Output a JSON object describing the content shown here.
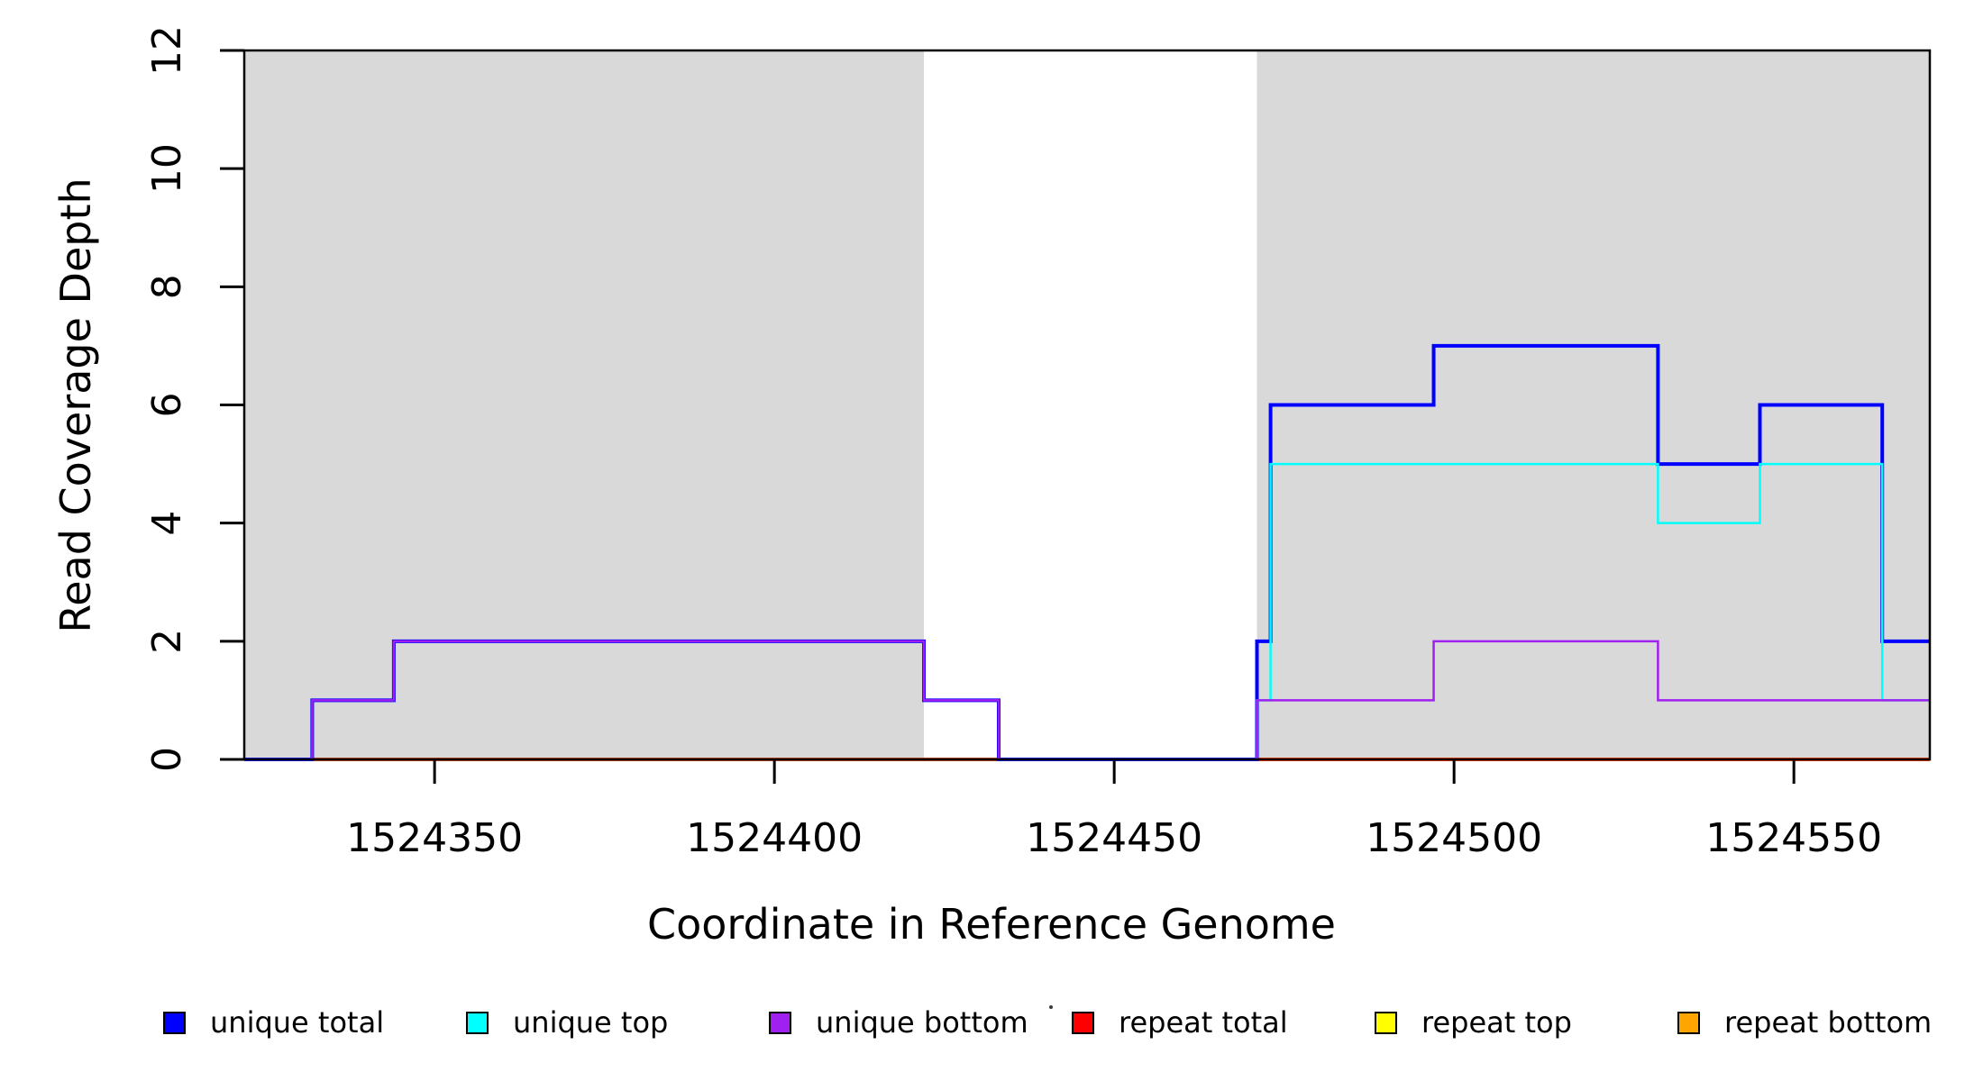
{
  "figure": {
    "xlabel": "Coordinate in Reference Genome",
    "ylabel": "Read Coverage Depth",
    "background_color": "#FFFFFF",
    "frame_color": "#000000",
    "shaded_region_color": "#D9D9D9"
  },
  "chart_data": {
    "type": "line",
    "subtype": "step",
    "title": "",
    "xlabel": "Coordinate in Reference Genome",
    "ylabel": "Read Coverage Depth",
    "xlim": [
      1524322,
      1524570
    ],
    "ylim": [
      0,
      12
    ],
    "x_ticks": [
      1524350,
      1524400,
      1524450,
      1524500,
      1524550
    ],
    "y_ticks": [
      0,
      2,
      4,
      6,
      8,
      10,
      12
    ],
    "grid": false,
    "legend_position": "bottom",
    "shaded_regions": [
      {
        "x_start": 1524322,
        "x_end": 1524422,
        "color": "#D9D9D9"
      },
      {
        "x_start": 1524471,
        "x_end": 1524570,
        "color": "#D9D9D9"
      }
    ],
    "series": [
      {
        "name": "repeat total",
        "color": "#FF0000",
        "line_width": 4,
        "points": [
          [
            1524322,
            0
          ],
          [
            1524570,
            0
          ]
        ]
      },
      {
        "name": "repeat top",
        "color": "#FFFF00",
        "line_width": 3,
        "points": [
          [
            1524322,
            0
          ],
          [
            1524570,
            0
          ]
        ]
      },
      {
        "name": "repeat bottom",
        "color": "#FFA500",
        "line_width": 2.5,
        "points": [
          [
            1524322,
            0
          ],
          [
            1524570,
            0
          ]
        ]
      },
      {
        "name": "unique total",
        "color": "#0000FF",
        "line_width": 4,
        "points": [
          [
            1524322,
            0
          ],
          [
            1524332,
            0
          ],
          [
            1524332,
            1
          ],
          [
            1524344,
            1
          ],
          [
            1524344,
            2
          ],
          [
            1524422,
            2
          ],
          [
            1524422,
            1
          ],
          [
            1524433,
            1
          ],
          [
            1524433,
            0
          ],
          [
            1524471,
            0
          ],
          [
            1524471,
            2
          ],
          [
            1524473,
            2
          ],
          [
            1524473,
            6
          ],
          [
            1524497,
            6
          ],
          [
            1524497,
            7
          ],
          [
            1524530,
            7
          ],
          [
            1524530,
            5
          ],
          [
            1524545,
            5
          ],
          [
            1524545,
            6
          ],
          [
            1524563,
            6
          ],
          [
            1524563,
            2
          ],
          [
            1524570,
            2
          ]
        ]
      },
      {
        "name": "unique top",
        "color": "#00FFFF",
        "line_width": 2.5,
        "points": [
          [
            1524322,
            0
          ],
          [
            1524471,
            0
          ],
          [
            1524471,
            1
          ],
          [
            1524473,
            1
          ],
          [
            1524473,
            5
          ],
          [
            1524530,
            5
          ],
          [
            1524530,
            4
          ],
          [
            1524545,
            4
          ],
          [
            1524545,
            5
          ],
          [
            1524563,
            5
          ],
          [
            1524563,
            1
          ],
          [
            1524570,
            1
          ]
        ]
      },
      {
        "name": "unique bottom",
        "color": "#A020F0",
        "line_width": 2.5,
        "points": [
          [
            1524322,
            0
          ],
          [
            1524332,
            0
          ],
          [
            1524332,
            1
          ],
          [
            1524344,
            1
          ],
          [
            1524344,
            2
          ],
          [
            1524422,
            2
          ],
          [
            1524422,
            1
          ],
          [
            1524433,
            1
          ],
          [
            1524433,
            0
          ],
          [
            1524471,
            0
          ],
          [
            1524471,
            1
          ],
          [
            1524497,
            1
          ],
          [
            1524497,
            2
          ],
          [
            1524530,
            2
          ],
          [
            1524530,
            1
          ],
          [
            1524570,
            1
          ]
        ]
      }
    ],
    "legend": [
      {
        "label": "unique total",
        "color": "#0000FF"
      },
      {
        "label": "unique top",
        "color": "#00FFFF"
      },
      {
        "label": "unique bottom",
        "color": "#A020F0"
      },
      {
        "label": "repeat total",
        "color": "#FF0000"
      },
      {
        "label": "repeat top",
        "color": "#FFFF00"
      },
      {
        "label": "repeat bottom",
        "color": "#FFA500"
      }
    ]
  }
}
